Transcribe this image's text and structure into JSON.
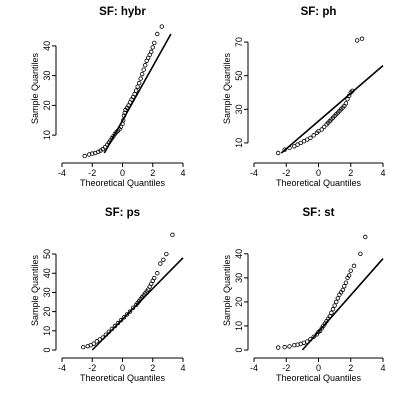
{
  "colors": {
    "ink": "#000000",
    "background": "#ffffff"
  },
  "chart_data": [
    {
      "type": "scatter",
      "title": "SF: hybr",
      "xlabel": "Theoretical Quantiles",
      "ylabel": "Sample Quantiles",
      "xlim": [
        -4,
        4
      ],
      "ylim": [
        4,
        44
      ],
      "xticks": [
        -4,
        -2,
        0,
        2,
        4
      ],
      "yticks": [
        10,
        20,
        30,
        40
      ],
      "reference_line": [
        [
          -1.2,
          4
        ],
        [
          3.2,
          44
        ]
      ],
      "points": [
        [
          -2.5,
          3
        ],
        [
          -2.2,
          3.5
        ],
        [
          -2.0,
          3.8
        ],
        [
          -1.8,
          4
        ],
        [
          -1.6,
          4.4
        ],
        [
          -1.45,
          4.8
        ],
        [
          -1.3,
          5.3
        ],
        [
          -1.15,
          6
        ],
        [
          -1.0,
          6.8
        ],
        [
          -0.9,
          7.5
        ],
        [
          -0.8,
          8.2
        ],
        [
          -0.7,
          9
        ],
        [
          -0.6,
          9.6
        ],
        [
          -0.5,
          10.4
        ],
        [
          -0.4,
          11
        ],
        [
          -0.3,
          11.5
        ],
        [
          -0.2,
          12
        ],
        [
          -0.1,
          12.8
        ],
        [
          0.0,
          13.8
        ],
        [
          0.05,
          15
        ],
        [
          0.1,
          16.5
        ],
        [
          0.15,
          17.5
        ],
        [
          0.2,
          18.5
        ],
        [
          0.3,
          19.2
        ],
        [
          0.4,
          20
        ],
        [
          0.5,
          21
        ],
        [
          0.6,
          22
        ],
        [
          0.7,
          22.8
        ],
        [
          0.8,
          23.8
        ],
        [
          0.9,
          25
        ],
        [
          1.0,
          26.3
        ],
        [
          1.1,
          27.5
        ],
        [
          1.2,
          29
        ],
        [
          1.3,
          30.5
        ],
        [
          1.4,
          32
        ],
        [
          1.5,
          33.5
        ],
        [
          1.6,
          35
        ],
        [
          1.7,
          36
        ],
        [
          1.8,
          37
        ],
        [
          1.9,
          38
        ],
        [
          2.0,
          39.5
        ],
        [
          2.1,
          41
        ],
        [
          2.3,
          44
        ],
        [
          2.6,
          46.5
        ]
      ]
    },
    {
      "type": "scatter",
      "title": "SF: ph",
      "xlabel": "Theoretical Quantiles",
      "ylabel": "Sample Quantiles",
      "xlim": [
        -4,
        4
      ],
      "ylim": [
        4,
        76
      ],
      "xticks": [
        -4,
        -2,
        0,
        2,
        4
      ],
      "yticks": [
        10,
        30,
        50,
        70
      ],
      "reference_line": [
        [
          -2.3,
          4
        ],
        [
          4,
          56
        ]
      ],
      "points": [
        [
          -2.5,
          4
        ],
        [
          -2.1,
          6
        ],
        [
          -1.8,
          7
        ],
        [
          -1.5,
          8
        ],
        [
          -1.3,
          9
        ],
        [
          -1.1,
          10
        ],
        [
          -0.9,
          11
        ],
        [
          -0.7,
          12
        ],
        [
          -0.5,
          13
        ],
        [
          -0.3,
          14.5
        ],
        [
          -0.1,
          16
        ],
        [
          0.0,
          17
        ],
        [
          0.2,
          18
        ],
        [
          0.35,
          19.5
        ],
        [
          0.5,
          21
        ],
        [
          0.6,
          22
        ],
        [
          0.7,
          23
        ],
        [
          0.8,
          24
        ],
        [
          0.9,
          25
        ],
        [
          1.0,
          26
        ],
        [
          1.1,
          27
        ],
        [
          1.2,
          28
        ],
        [
          1.3,
          29
        ],
        [
          1.4,
          30
        ],
        [
          1.5,
          31
        ],
        [
          1.6,
          32
        ],
        [
          1.7,
          33.5
        ],
        [
          1.8,
          36
        ],
        [
          1.9,
          38
        ],
        [
          2.0,
          40
        ],
        [
          2.1,
          41
        ],
        [
          2.4,
          71
        ],
        [
          2.7,
          72
        ]
      ]
    },
    {
      "type": "scatter",
      "title": "SF: ps",
      "xlabel": "Theoretical Quantiles",
      "ylabel": "Sample Quantiles",
      "xlim": [
        -4,
        4
      ],
      "ylim": [
        0,
        62
      ],
      "xticks": [
        -4,
        -2,
        0,
        2,
        4
      ],
      "yticks": [
        0,
        10,
        20,
        30,
        40,
        50
      ],
      "reference_line": [
        [
          -2.0,
          0
        ],
        [
          4,
          48
        ]
      ],
      "points": [
        [
          -2.6,
          1.5
        ],
        [
          -2.3,
          2
        ],
        [
          -2.1,
          2.5
        ],
        [
          -1.9,
          3.3
        ],
        [
          -1.7,
          4.5
        ],
        [
          -1.5,
          5.5
        ],
        [
          -1.3,
          6.5
        ],
        [
          -1.1,
          8
        ],
        [
          -0.9,
          9.5
        ],
        [
          -0.7,
          11
        ],
        [
          -0.5,
          12.5
        ],
        [
          -0.3,
          14
        ],
        [
          -0.1,
          15.5
        ],
        [
          0.1,
          17
        ],
        [
          0.3,
          18.5
        ],
        [
          0.5,
          20
        ],
        [
          0.7,
          22
        ],
        [
          0.9,
          23.5
        ],
        [
          1.0,
          24.5
        ],
        [
          1.1,
          25.5
        ],
        [
          1.2,
          26.5
        ],
        [
          1.3,
          27.5
        ],
        [
          1.4,
          28.5
        ],
        [
          1.5,
          29.5
        ],
        [
          1.6,
          30.5
        ],
        [
          1.7,
          31.5
        ],
        [
          1.8,
          33
        ],
        [
          1.9,
          34.5
        ],
        [
          2.0,
          36
        ],
        [
          2.1,
          37.5
        ],
        [
          2.3,
          40
        ],
        [
          2.5,
          45
        ],
        [
          2.7,
          47
        ],
        [
          2.9,
          50
        ],
        [
          3.3,
          60
        ]
      ]
    },
    {
      "type": "scatter",
      "title": "SF: st",
      "xlabel": "Theoretical Quantiles",
      "ylabel": "Sample Quantiles",
      "xlim": [
        -4,
        4
      ],
      "ylim": [
        0,
        47
      ],
      "xticks": [
        -4,
        -2,
        0,
        2,
        4
      ],
      "yticks": [
        0,
        10,
        20,
        30,
        40
      ],
      "reference_line": [
        [
          -1.0,
          0
        ],
        [
          4,
          38
        ]
      ],
      "points": [
        [
          -2.5,
          1
        ],
        [
          -2.1,
          1.2
        ],
        [
          -1.8,
          1.5
        ],
        [
          -1.5,
          2
        ],
        [
          -1.3,
          2.2
        ],
        [
          -1.1,
          2.5
        ],
        [
          -0.9,
          3
        ],
        [
          -0.7,
          3.5
        ],
        [
          -0.5,
          4.5
        ],
        [
          -0.3,
          5.5
        ],
        [
          -0.1,
          6.5
        ],
        [
          0.0,
          7.5
        ],
        [
          0.1,
          8
        ],
        [
          0.2,
          9
        ],
        [
          0.3,
          10
        ],
        [
          0.4,
          11
        ],
        [
          0.5,
          12
        ],
        [
          0.6,
          13
        ],
        [
          0.7,
          14
        ],
        [
          0.8,
          15.5
        ],
        [
          0.9,
          17
        ],
        [
          1.0,
          18.5
        ],
        [
          1.1,
          20
        ],
        [
          1.2,
          21.5
        ],
        [
          1.3,
          23
        ],
        [
          1.4,
          24
        ],
        [
          1.5,
          25
        ],
        [
          1.6,
          26.5
        ],
        [
          1.7,
          28
        ],
        [
          1.8,
          30
        ],
        [
          1.9,
          31
        ],
        [
          2.0,
          33
        ],
        [
          2.2,
          35
        ],
        [
          2.6,
          40
        ],
        [
          2.9,
          47
        ]
      ]
    }
  ]
}
